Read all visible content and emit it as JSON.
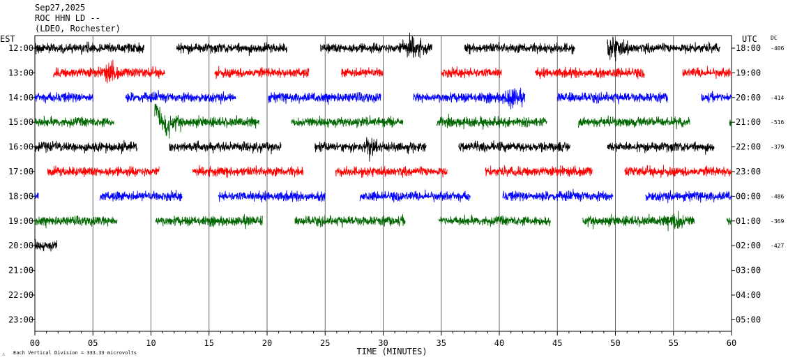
{
  "header": {
    "date": "Sep27,2025",
    "station": "ROC HHN LD --",
    "network": "(LDEO, Rochester)"
  },
  "left_axis_label": "EST",
  "right_axis_label": "UTC",
  "dc_label": "DC",
  "footer": {
    "xlabel": "TIME (MINUTES)",
    "scale_note": "Each Vertical Division =  333.33 microvolts",
    "logo_glyph": "∴"
  },
  "colors": {
    "cycle": [
      "#000000",
      "#ff0000",
      "#0000ff",
      "#006600"
    ],
    "grid": "#000000",
    "background": "#ffffff"
  },
  "chart_data": {
    "type": "line",
    "title": "",
    "xlabel": "TIME (MINUTES)",
    "ylabel": "",
    "xlim": [
      0,
      60
    ],
    "x_ticks": [
      "00",
      "05",
      "10",
      "15",
      "20",
      "25",
      "30",
      "35",
      "40",
      "45",
      "50",
      "55",
      "60"
    ],
    "rows": [
      {
        "est": "12:00",
        "utc": "18:00",
        "dc": "-406",
        "color": "#000000",
        "segments": [
          [
            0,
            9.4
          ],
          [
            12.2,
            21.7
          ],
          [
            24.6,
            34.2
          ],
          [
            37,
            46.5
          ],
          [
            49.3,
            59
          ]
        ],
        "events": [
          [
            32.5,
            1.4
          ],
          [
            49.8,
            1.6
          ]
        ]
      },
      {
        "est": "13:00",
        "utc": "19:00",
        "dc": "",
        "color": "#ff0000",
        "segments": [
          [
            1.6,
            11.2
          ],
          [
            15.5,
            23.6
          ],
          [
            26.4,
            30
          ],
          [
            35,
            40.2
          ],
          [
            43.1,
            52.5
          ],
          [
            55.8,
            60
          ]
        ],
        "events": [
          [
            6.5,
            0.8
          ]
        ]
      },
      {
        "est": "14:00",
        "utc": "20:00",
        "dc": "-414",
        "color": "#0000ff",
        "segments": [
          [
            0,
            5
          ],
          [
            7.8,
            17.3
          ],
          [
            20.1,
            29.8
          ],
          [
            32.6,
            42.2
          ],
          [
            45,
            54.5
          ],
          [
            57.4,
            60
          ]
        ],
        "events": [
          [
            41.1,
            1.0
          ]
        ]
      },
      {
        "est": "15:00",
        "utc": "21:00",
        "dc": "-516",
        "color": "#006600",
        "segments": [
          [
            0,
            6.8
          ],
          [
            10.3,
            19.3
          ],
          [
            22.1,
            31.7
          ],
          [
            34.6,
            44.1
          ],
          [
            46.8,
            56.4
          ],
          [
            59.8,
            60
          ]
        ],
        "events": [
          [
            10.6,
            2.3
          ]
        ]
      },
      {
        "est": "16:00",
        "utc": "22:00",
        "dc": "-379",
        "color": "#000000",
        "segments": [
          [
            0,
            8.8
          ],
          [
            11.6,
            21.2
          ],
          [
            24.1,
            33.7
          ],
          [
            36.5,
            46.1
          ],
          [
            49.3,
            58.5
          ]
        ],
        "events": [
          [
            28.8,
            0.8
          ]
        ]
      },
      {
        "est": "17:00",
        "utc": "23:00",
        "dc": "",
        "color": "#ff0000",
        "segments": [
          [
            1.1,
            10.7
          ],
          [
            13.6,
            23.1
          ],
          [
            25.9,
            35.5
          ],
          [
            38.8,
            48
          ],
          [
            50.8,
            60
          ]
        ],
        "events": []
      },
      {
        "est": "18:00",
        "utc": "00:00",
        "dc": "-486",
        "color": "#0000ff",
        "segments": [
          [
            0,
            0.3
          ],
          [
            5.6,
            12.7
          ],
          [
            15.8,
            25
          ],
          [
            28,
            37.5
          ],
          [
            40.3,
            49.8
          ],
          [
            52.6,
            60
          ]
        ],
        "events": []
      },
      {
        "est": "19:00",
        "utc": "01:00",
        "dc": "-369",
        "color": "#006600",
        "segments": [
          [
            0,
            7.1
          ],
          [
            10.4,
            19.6
          ],
          [
            22.4,
            31.9
          ],
          [
            34.8,
            44.4
          ],
          [
            47.2,
            56.8
          ],
          [
            59.6,
            60
          ]
        ],
        "events": [
          [
            55.2,
            1.0
          ]
        ]
      },
      {
        "est": "20:00",
        "utc": "02:00",
        "dc": "-427",
        "color": "#000000",
        "segments": [
          [
            0,
            1.9
          ]
        ],
        "events": []
      },
      {
        "est": "21:00",
        "utc": "03:00",
        "dc": "",
        "color": "#ff0000",
        "segments": [],
        "events": []
      },
      {
        "est": "22:00",
        "utc": "04:00",
        "dc": "",
        "color": "#0000ff",
        "segments": [],
        "events": []
      },
      {
        "est": "23:00",
        "utc": "05:00",
        "dc": "",
        "color": "#006600",
        "segments": [],
        "events": []
      }
    ]
  }
}
